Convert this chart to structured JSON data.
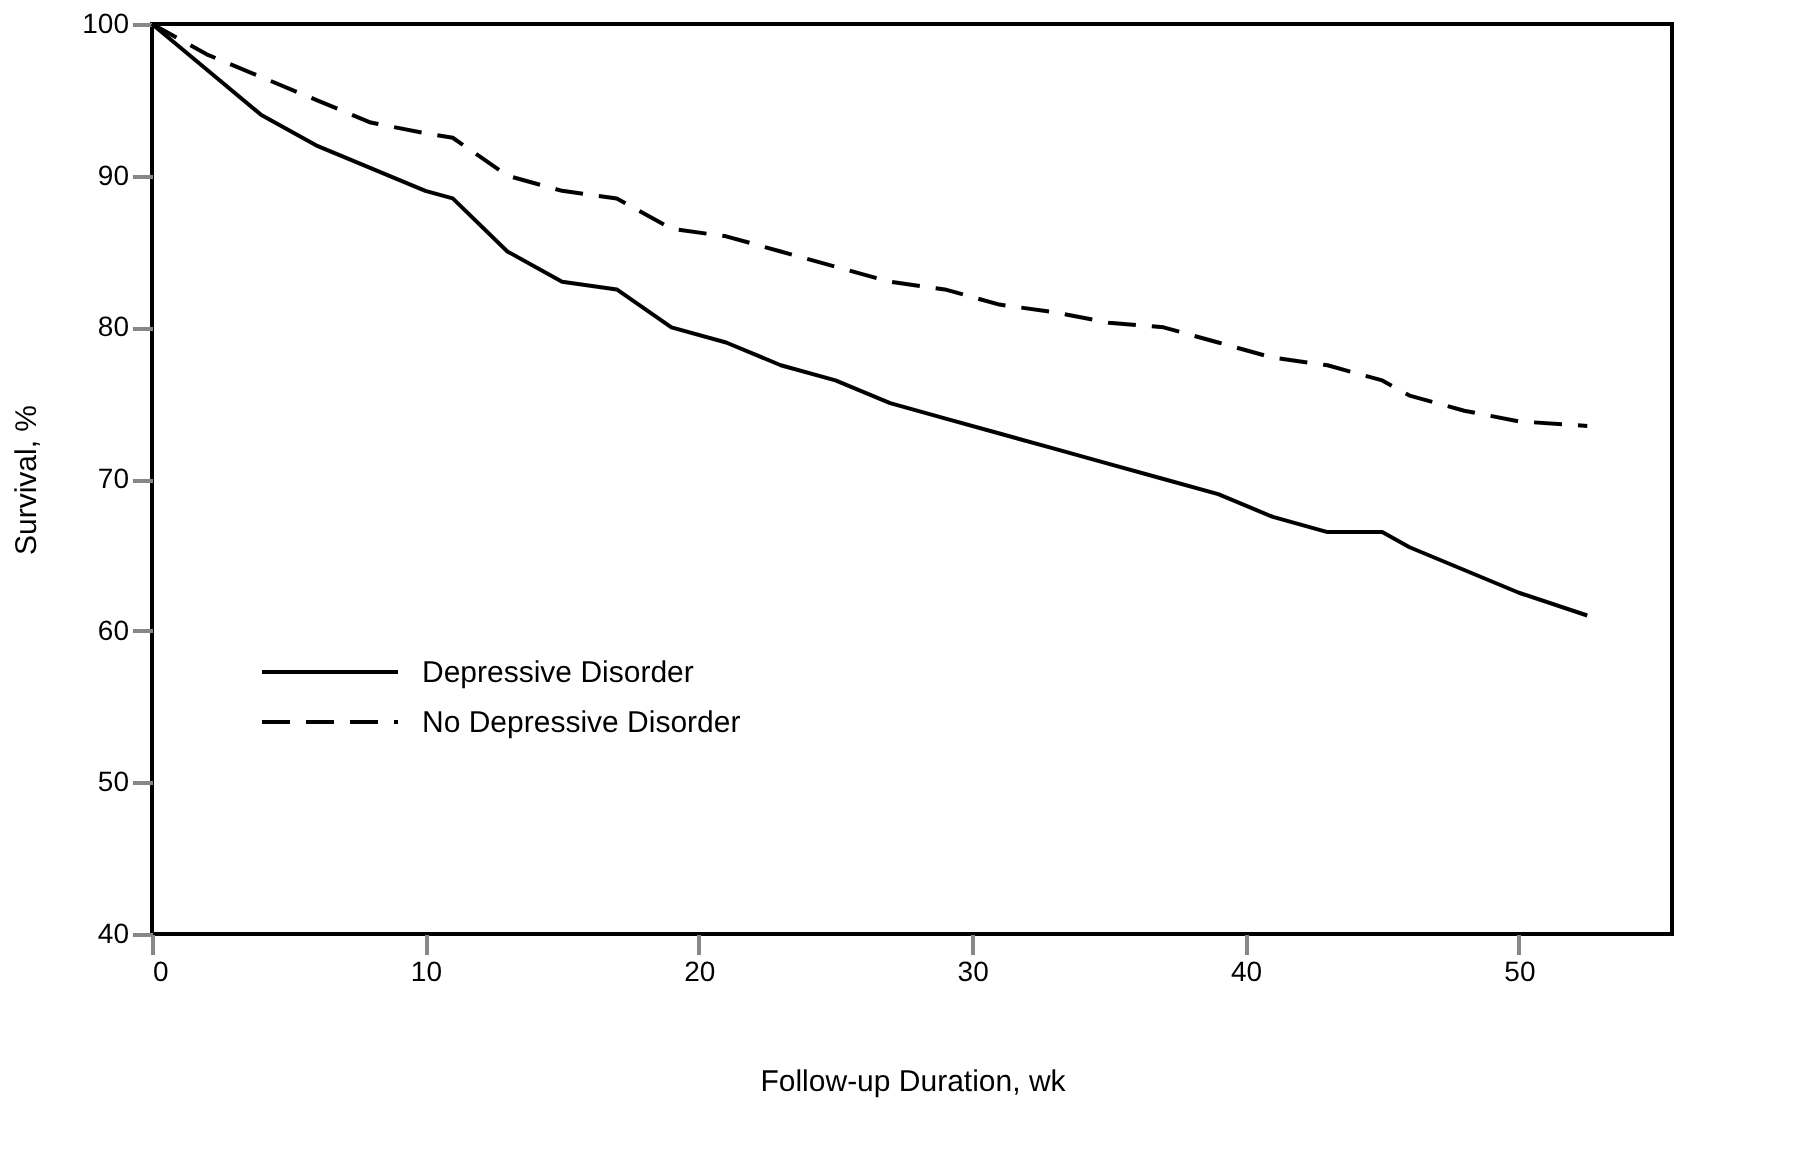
{
  "chart_data": {
    "type": "line",
    "xlabel": "Follow-up Duration, wk",
    "ylabel": "Survival, %",
    "xlim": [
      0,
      55.6
    ],
    "xticks": [
      0,
      10,
      20,
      30,
      40,
      50
    ],
    "ylim": [
      40,
      100
    ],
    "yticks": [
      40,
      50,
      60,
      70,
      80,
      90,
      100
    ],
    "grid": false,
    "legend": "left",
    "marker": "none",
    "x": [
      0,
      2,
      4,
      6,
      8,
      10,
      11,
      13,
      15,
      17,
      19,
      21,
      23,
      25,
      27,
      29,
      31,
      33,
      35,
      37,
      39,
      41,
      43,
      45,
      46,
      48,
      50,
      52.5
    ],
    "series": [
      {
        "name": "Depressive Disorder",
        "color": "#000000",
        "line_style": "solid",
        "values": [
          100,
          97,
          94,
          92,
          90.5,
          89,
          88.5,
          85,
          83,
          82.5,
          80,
          79,
          77.5,
          76.5,
          75,
          74,
          73,
          72,
          71,
          70,
          69,
          67.5,
          66.5,
          66.5,
          65.5,
          64,
          62.5,
          61
        ]
      },
      {
        "name": "No Depressive Disorder",
        "color": "#000000",
        "line_style": "dashed",
        "values": [
          100,
          98,
          96.5,
          95,
          93.5,
          92.8,
          92.5,
          90,
          89,
          88.5,
          86.5,
          86,
          85,
          84,
          83,
          82.5,
          81.5,
          81,
          80.3,
          80,
          79,
          78,
          77.5,
          76.5,
          75.5,
          74.5,
          73.8,
          73.5
        ]
      }
    ]
  }
}
